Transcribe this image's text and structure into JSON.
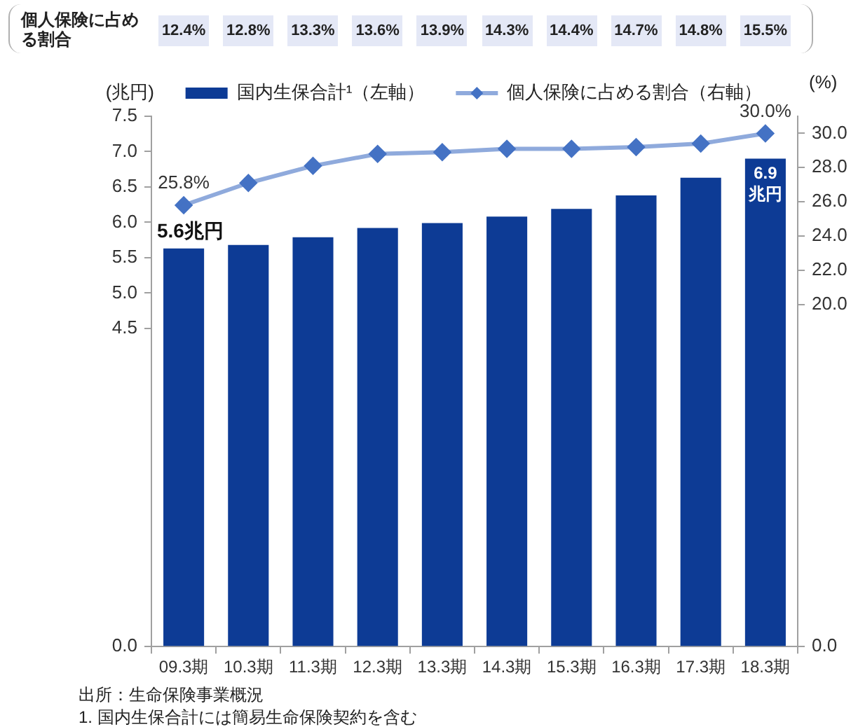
{
  "chart_data": {
    "type": "bar",
    "categories": [
      "09.3期",
      "10.3期",
      "11.3期",
      "12.3期",
      "13.3期",
      "14.3期",
      "15.3期",
      "16.3期",
      "17.3期",
      "18.3期"
    ],
    "series": [
      {
        "name": "国内生保合計¹（左軸）",
        "color": "#0d3b95",
        "values": [
          5.63,
          5.68,
          5.79,
          5.92,
          5.99,
          6.08,
          6.19,
          6.38,
          6.63,
          6.9
        ],
        "value_labels": [
          "5.6兆円",
          null,
          null,
          null,
          null,
          null,
          null,
          null,
          null,
          "6.9兆円"
        ]
      },
      {
        "name": "個人保険に占める割合（右軸）",
        "type": "line",
        "axis": "y2",
        "color": "#4472c4",
        "values": [
          25.8,
          27.1,
          28.1,
          28.8,
          28.9,
          29.1,
          29.1,
          29.2,
          29.4,
          30.0
        ],
        "value_labels": [
          "25.8%",
          null,
          null,
          null,
          null,
          null,
          null,
          null,
          null,
          "30.0%"
        ]
      }
    ],
    "ylabel": "(兆円)",
    "y2label": "(%)",
    "ylim": [
      0,
      7.5
    ],
    "yticks": [
      {
        "value": 0,
        "label": "0.0"
      },
      4.5,
      {
        "value": 5,
        "label": "5.0"
      },
      5.5,
      {
        "value": 6,
        "label": "6.0"
      },
      6.5,
      {
        "value": 7,
        "label": "7.0"
      },
      7.5
    ],
    "y2lim": [
      0,
      31
    ],
    "y2ticks": [
      {
        "value": 0,
        "label": "0.0"
      },
      {
        "value": 20,
        "label": "20.0"
      },
      {
        "value": 22,
        "label": "22.0"
      },
      {
        "value": 24,
        "label": "24.0"
      },
      {
        "value": 26,
        "label": "26.0"
      },
      {
        "value": 28,
        "label": "28.0"
      },
      {
        "value": 30,
        "label": "30.0"
      }
    ],
    "legend": "top",
    "grid": false,
    "marker": "diamond",
    "annotations": [
      "個人保険に占める割合",
      "12.4%",
      "12.8%",
      "13.3%",
      "13.6%",
      "13.9%",
      "14.3%",
      "14.4%",
      "14.7%",
      "14.8%",
      "15.5%",
      "出所：生命保険事業概況",
      "1. 国内生保合計には簡易生命保険契約を含む"
    ]
  }
}
